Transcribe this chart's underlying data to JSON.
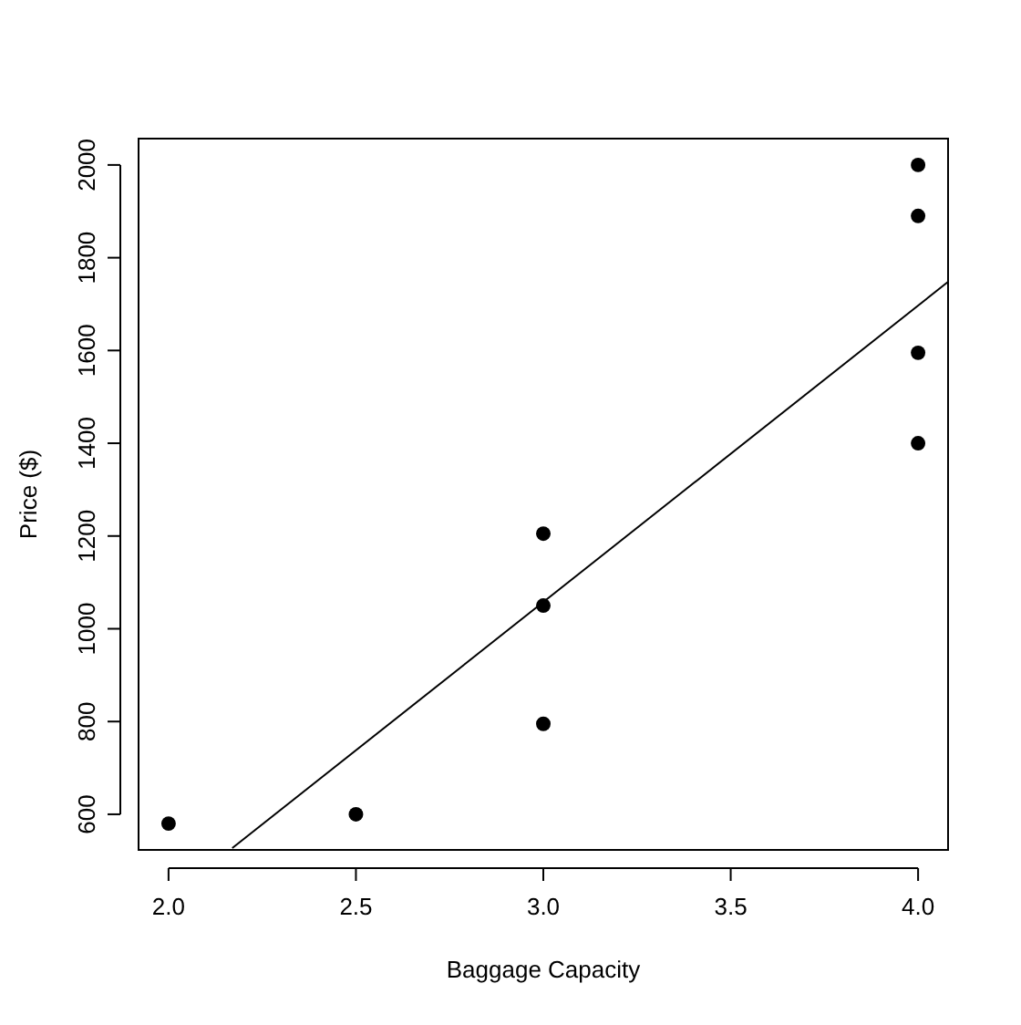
{
  "chart_data": {
    "type": "scatter",
    "xlabel": "Baggage Capacity",
    "ylabel": "Price ($)",
    "xlim": [
      1.92,
      4.08
    ],
    "ylim": [
      523.2,
      2056.8
    ],
    "xticks": [
      {
        "value": 2,
        "label": "2.0"
      },
      {
        "value": 2.5,
        "label": "2.5"
      },
      {
        "value": 3,
        "label": "3.0"
      },
      {
        "value": 3.5,
        "label": "3.5"
      },
      {
        "value": 4,
        "label": "4.0"
      }
    ],
    "yticks": [
      600,
      800,
      1000,
      1200,
      1400,
      1600,
      1800,
      2000
    ],
    "grid": false,
    "series": [
      {
        "marker": "circle",
        "color": "#000000",
        "x": [
          2,
          2.5,
          3,
          3,
          3,
          4,
          4,
          4,
          4
        ],
        "values": [
          580,
          600,
          1205,
          1050,
          795,
          2000,
          1890,
          1595,
          1400
        ]
      },
      {
        "type": "line",
        "color": "#000000",
        "x": [
          2.17,
          4.08
        ],
        "values": [
          527,
          1748
        ]
      }
    ]
  }
}
